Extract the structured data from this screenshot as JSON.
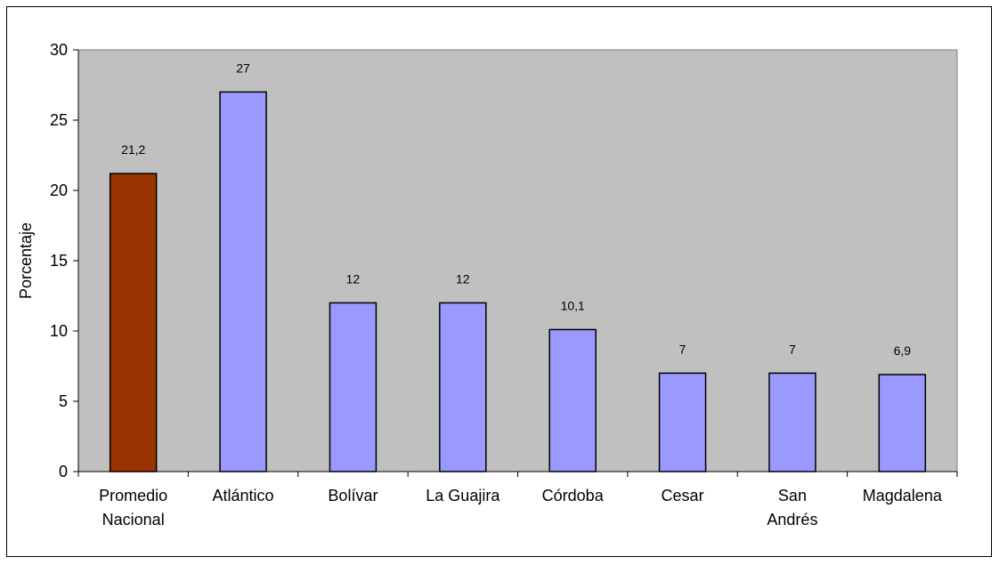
{
  "chart_data": {
    "type": "bar",
    "title": "",
    "xlabel": "",
    "ylabel": "Porcentaje",
    "ylim": [
      0,
      30
    ],
    "yticks": [
      0,
      5,
      10,
      15,
      20,
      25,
      30
    ],
    "grid": false,
    "legend": "none",
    "categories": [
      [
        "Promedio",
        "Nacional"
      ],
      [
        "Atlántico"
      ],
      [
        "Bolívar"
      ],
      [
        "La Guajira"
      ],
      [
        "Córdoba"
      ],
      [
        "Cesar"
      ],
      [
        "San",
        "Andrés"
      ],
      [
        "Magdalena"
      ]
    ],
    "values": [
      21.2,
      27,
      12,
      12,
      10.1,
      7,
      7,
      6.9
    ],
    "data_labels": [
      "21,2",
      "27",
      "12",
      "12",
      "10,1",
      "7",
      "7",
      "6,9"
    ],
    "colors": [
      "#993300",
      "#9999ff",
      "#9999ff",
      "#9999ff",
      "#9999ff",
      "#9999ff",
      "#9999ff",
      "#9999ff"
    ],
    "plot_background": "#c0c0c0"
  }
}
